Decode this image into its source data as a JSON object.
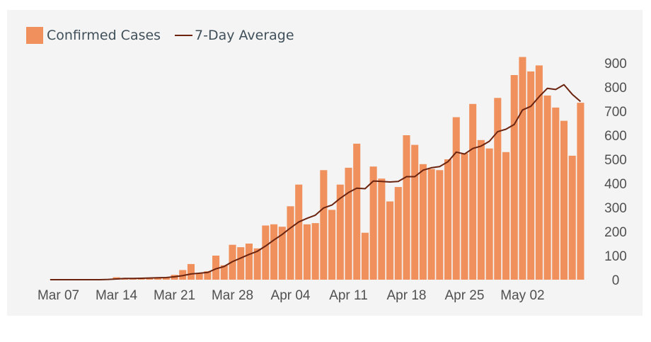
{
  "chart_data": {
    "type": "bar",
    "title": "",
    "xlabel": "",
    "ylabel": "",
    "ylim": [
      0,
      900
    ],
    "y_ticks": [
      0,
      100,
      200,
      300,
      400,
      500,
      600,
      700,
      800,
      900
    ],
    "y_axis_position": "right",
    "x_tick_labels": [
      "Mar 07",
      "Mar 14",
      "Mar 21",
      "Mar 28",
      "Apr 04",
      "Apr 11",
      "Apr 18",
      "Apr 25",
      "May 02"
    ],
    "legend_position": "top-left",
    "categories": [
      "Mar 06",
      "Mar 07",
      "Mar 08",
      "Mar 09",
      "Mar 10",
      "Mar 11",
      "Mar 12",
      "Mar 13",
      "Mar 14",
      "Mar 15",
      "Mar 16",
      "Mar 17",
      "Mar 18",
      "Mar 19",
      "Mar 20",
      "Mar 21",
      "Mar 22",
      "Mar 23",
      "Mar 24",
      "Mar 25",
      "Mar 26",
      "Mar 27",
      "Mar 28",
      "Mar 29",
      "Mar 30",
      "Mar 31",
      "Apr 01",
      "Apr 02",
      "Apr 03",
      "Apr 04",
      "Apr 05",
      "Apr 06",
      "Apr 07",
      "Apr 08",
      "Apr 09",
      "Apr 10",
      "Apr 11",
      "Apr 12",
      "Apr 13",
      "Apr 14",
      "Apr 15",
      "Apr 16",
      "Apr 17",
      "Apr 18",
      "Apr 19",
      "Apr 20",
      "Apr 21",
      "Apr 22",
      "Apr 23",
      "Apr 24",
      "Apr 25",
      "Apr 26",
      "Apr 27",
      "Apr 28",
      "Apr 29",
      "Apr 30",
      "May 01",
      "May 02",
      "May 03",
      "May 04",
      "May 05",
      "May 06",
      "May 07",
      "May 08",
      "May 09",
      "May 10"
    ],
    "series": [
      {
        "name": "Confirmed Cases",
        "type": "bar",
        "color": "#f0905c",
        "values": [
          0,
          0,
          0,
          0,
          0,
          0,
          0,
          3,
          10,
          5,
          5,
          5,
          8,
          10,
          10,
          20,
          40,
          65,
          25,
          35,
          100,
          60,
          145,
          135,
          150,
          130,
          225,
          230,
          220,
          305,
          395,
          230,
          235,
          455,
          290,
          395,
          465,
          565,
          195,
          470,
          420,
          325,
          385,
          600,
          560,
          480,
          460,
          455,
          500,
          675,
          525,
          730,
          580,
          545,
          755,
          530,
          850,
          925,
          865,
          890,
          765,
          715,
          660,
          515,
          735,
          0
        ]
      },
      {
        "name": "7-Day Average",
        "type": "line",
        "color": "#6b2410",
        "values": [
          0,
          0,
          0,
          0,
          0,
          0,
          0,
          1,
          3,
          5,
          5,
          6,
          7,
          8,
          9,
          12,
          17,
          24,
          27,
          30,
          45,
          55,
          75,
          90,
          105,
          118,
          140,
          165,
          188,
          215,
          240,
          255,
          268,
          298,
          310,
          338,
          362,
          380,
          378,
          410,
          408,
          406,
          408,
          428,
          428,
          455,
          465,
          470,
          490,
          530,
          522,
          545,
          555,
          575,
          615,
          625,
          645,
          705,
          720,
          760,
          795,
          790,
          810,
          770,
          740,
          null
        ]
      }
    ]
  }
}
